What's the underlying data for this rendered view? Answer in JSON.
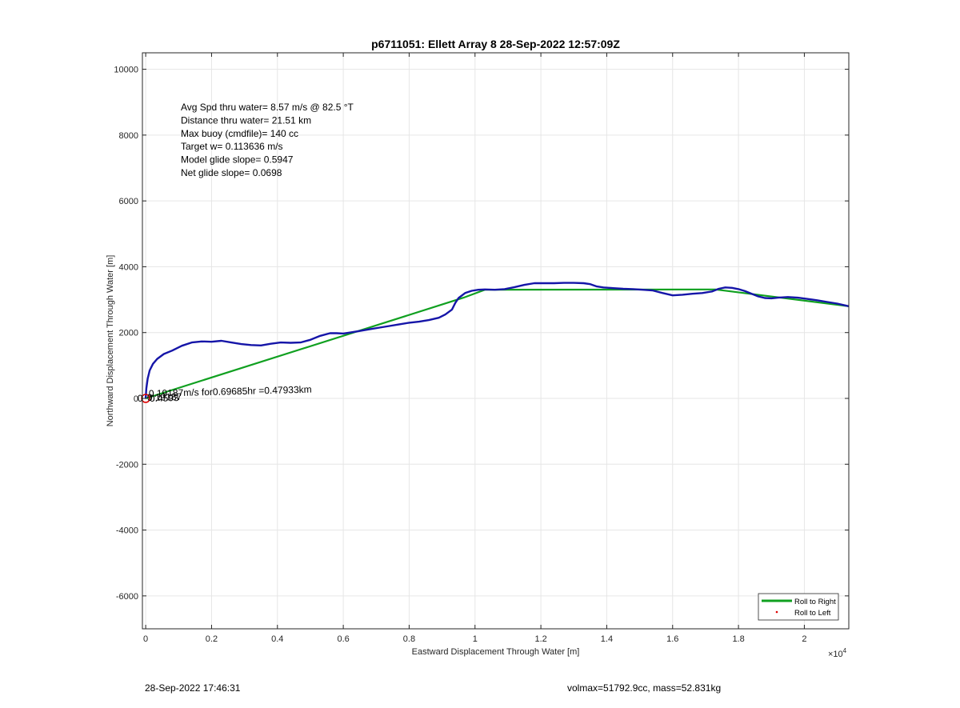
{
  "chart_data": {
    "type": "line",
    "title": "p6711051: Ellett Array 8 28-Sep-2022 12:57:09Z",
    "xlabel": "Eastward Displacement Through Water [m]",
    "ylabel": "Northward Displacement Through Water [m]",
    "x_exponent_label": "×10",
    "x_exponent_power": "4",
    "xlim": [
      -100,
      21350
    ],
    "ylim": [
      -7000,
      10500
    ],
    "x_ticks": [
      0,
      2000,
      4000,
      6000,
      8000,
      10000,
      12000,
      14000,
      16000,
      18000,
      20000
    ],
    "x_tick_labels": [
      "0",
      "0.2",
      "0.4",
      "0.6",
      "0.8",
      "1",
      "1.2",
      "1.4",
      "1.6",
      "1.8",
      "2"
    ],
    "y_ticks": [
      -6000,
      -4000,
      -2000,
      0,
      2000,
      4000,
      6000,
      8000,
      10000
    ],
    "y_tick_labels": [
      "-6000",
      "-4000",
      "-2000",
      "0",
      "2000",
      "4000",
      "6000",
      "8000",
      "10000"
    ],
    "grid": true,
    "legend_position": "bottom-right",
    "series": [
      {
        "name": "",
        "color": "#1515a8",
        "style": "track",
        "x": [
          0,
          20,
          60,
          120,
          220,
          350,
          550,
          800,
          1100,
          1400,
          1700,
          2000,
          2300,
          2600,
          2900,
          3200,
          3500,
          3800,
          4100,
          4400,
          4700,
          5000,
          5300,
          5600,
          5800,
          6000,
          6200,
          6500,
          6800,
          7100,
          7400,
          7700,
          8000,
          8300,
          8600,
          8900,
          9100,
          9300,
          9400,
          9500,
          9700,
          9900,
          10100,
          10300,
          10600,
          10900,
          11200,
          11500,
          11800,
          12100,
          12400,
          12700,
          13000,
          13300,
          13500,
          13700,
          13900,
          14200,
          14500,
          14800,
          15100,
          15400,
          15700,
          16000,
          16300,
          16600,
          16900,
          17200,
          17400,
          17600,
          17800,
          18000,
          18200,
          18400,
          18600,
          18800,
          19000,
          19200,
          19500,
          19800,
          20100,
          20400,
          20700,
          21000,
          21350
        ],
        "y": [
          0,
          300,
          600,
          850,
          1050,
          1200,
          1350,
          1450,
          1600,
          1700,
          1730,
          1720,
          1750,
          1700,
          1650,
          1620,
          1610,
          1660,
          1700,
          1690,
          1700,
          1780,
          1900,
          1980,
          1980,
          1970,
          2000,
          2050,
          2100,
          2150,
          2200,
          2250,
          2300,
          2330,
          2380,
          2450,
          2550,
          2700,
          2900,
          3050,
          3200,
          3270,
          3300,
          3310,
          3300,
          3320,
          3380,
          3450,
          3500,
          3500,
          3500,
          3510,
          3510,
          3500,
          3470,
          3400,
          3370,
          3350,
          3330,
          3320,
          3300,
          3280,
          3200,
          3130,
          3150,
          3180,
          3200,
          3250,
          3330,
          3370,
          3360,
          3320,
          3260,
          3180,
          3100,
          3050,
          3040,
          3060,
          3080,
          3060,
          3020,
          2980,
          2930,
          2880,
          2800
        ]
      },
      {
        "name": "Roll to Right",
        "color": "#10a020",
        "style": "solid",
        "x": [
          0,
          9650,
          10300,
          17300,
          21350
        ],
        "y": [
          0,
          3060,
          3300,
          3310,
          2800
        ]
      },
      {
        "name": "Roll to Left",
        "color": "#e00000",
        "style": "dot",
        "x": [],
        "y": []
      }
    ],
    "annotations": [
      {
        "id": "avg_spd",
        "text": "Avg Spd thru water=  8.57 m/s @  82.5 °T"
      },
      {
        "id": "distance",
        "text": "Distance thru water= 21.51 km"
      },
      {
        "id": "max_buoy",
        "text": "Max buoy (cmdfile)= 140 cc"
      },
      {
        "id": "target_w",
        "text": "Target w= 0.113636 m/s"
      },
      {
        "id": "model_glide",
        "text": "Model glide slope= 0.5947"
      },
      {
        "id": "net_glide",
        "text": "Net glide slope= 0.0698"
      }
    ],
    "overlap_labels": [
      "0.19187m/s for0.69685hr =0.47933km",
      "0.19187",
      "0.4593",
      "0"
    ]
  },
  "footer": {
    "timestamp": "28-Sep-2022 17:46:31",
    "volmass": "volmax=51792.9cc, mass=52.831kg"
  },
  "colors": {
    "axis": "#262626",
    "grid": "#e6e6e6",
    "track": "#1515a8",
    "roll_right": "#10a020",
    "roll_left": "#e00000",
    "start_marker": "#e00000"
  }
}
